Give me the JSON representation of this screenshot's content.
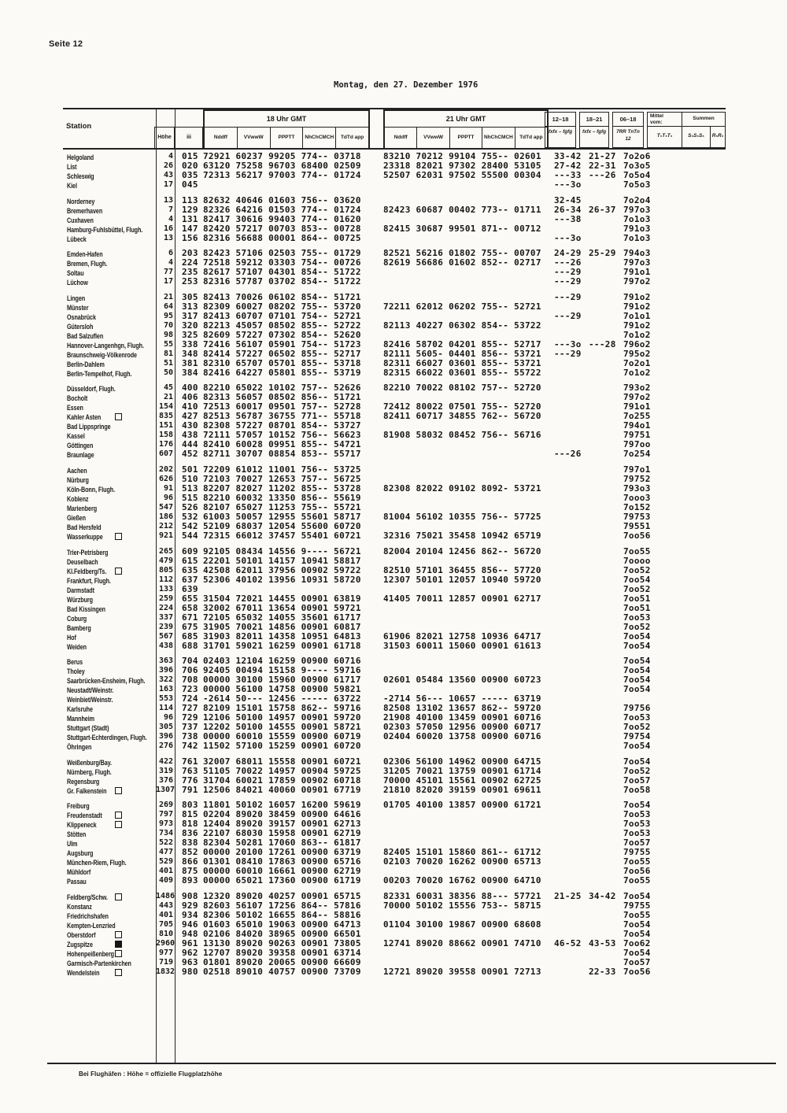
{
  "page": {
    "label": "Seite 12",
    "title": "Montag, den 27. Dezember 1976",
    "footnote": "Bei Flughäfen :  Höhe = offizielle Flugplatzhöhe"
  },
  "header": {
    "station": "Station",
    "hoehe": "Höhe",
    "iii": "iii",
    "g18_title": "18 Uhr GMT",
    "g21_title": "21 Uhr GMT",
    "cols": [
      "Nddff",
      "VVwwW",
      "PPPTT",
      "NhChCMCH",
      "TdTd app"
    ],
    "r1": "12–18",
    "r2": "18–21",
    "r3": "06–18",
    "r1s": "fxfx – fgfg",
    "r2s": "fxfx – fgfg",
    "r3s": "7RR TnTn\n12",
    "mittel": "Mittel\nvom:",
    "summen": "Summen",
    "t5": "T₅T₅T₅",
    "s5": "S₅S₅S₅",
    "r5": "R₅R₅"
  },
  "blocks": [
    [
      [
        "Helgoland",
        "",
        "4",
        "015",
        "72921 60237 99205 774-- 03718",
        "83210 70212 99104 755-- 02601",
        "33-42",
        "21-27",
        "7o2o6"
      ],
      [
        "List",
        "",
        "26",
        "020",
        "63120 75258 96703 68400 02509",
        "23318 82021 97302 28400 53105",
        "27-42",
        "22-31",
        "7o3o5"
      ],
      [
        "Schleswig",
        "",
        "43",
        "035",
        "72313 56217 97003 774-- 01724",
        "52507 62031 97502 55500 00304",
        "---33",
        "---26",
        "7o5o4"
      ],
      [
        "Kiel",
        "",
        "17",
        "045",
        "",
        "",
        "---3o",
        "",
        "7o5o3"
      ]
    ],
    [
      [
        "Norderney",
        "",
        "13",
        "113",
        "82632 40646 01603 756-- 03620",
        "",
        "32-45",
        "",
        "7o2o4"
      ],
      [
        "Bremerhaven",
        "",
        "7",
        "129",
        "82326 64216 01503 774-- 01724",
        "82423 60687 00402 773-- 01711",
        "26-34",
        "26-37",
        "797o3"
      ],
      [
        "Cuxhaven",
        "",
        "4",
        "131",
        "82417 30616 99403 774-- 01620",
        "",
        "---38",
        "",
        "7o1o3"
      ],
      [
        "Hamburg-Fuhlsbüttel, Flugh.",
        "",
        "16",
        "147",
        "82420 57217 00703 853-- 00728",
        "82415 30687 99501 871-- 00712",
        "",
        "",
        "791o3"
      ],
      [
        "Lübeck",
        "",
        "13",
        "156",
        "82316 56688 00001 864-- 00725",
        "",
        "---3o",
        "",
        "7o1o3"
      ]
    ],
    [
      [
        "Emden-Hafen",
        "",
        "6",
        "203",
        "82423 57106 02503 755-- 01729",
        "82521 56216 01802 755-- 00707",
        "24-29",
        "25-29",
        "794o3"
      ],
      [
        "Bremen, Flugh.",
        "",
        "4",
        "224",
        "72518 59212 03303 754-- 00726",
        "82619 56686 01602 852-- 02717",
        "---26",
        "",
        "797o3"
      ],
      [
        "Soltau",
        "",
        "77",
        "235",
        "82617 57107 04301 854-- 51722",
        "",
        "---29",
        "",
        "791o1"
      ],
      [
        "Lüchow",
        "",
        "17",
        "253",
        "82316 57787 03702 854-- 51722",
        "",
        "---29",
        "",
        "797o2"
      ]
    ],
    [
      [
        "Lingen",
        "",
        "21",
        "305",
        "82413 70026 06102 854-- 51721",
        "",
        "---29",
        "",
        "791o2"
      ],
      [
        "Münster",
        "",
        "64",
        "313",
        "82309 60027 08202 755-- 53720",
        "72211 62012 06202 755-- 52721",
        "",
        "",
        "791o2"
      ],
      [
        "Osnabrück",
        "",
        "95",
        "317",
        "82413 60707 07101 754-- 52721",
        "",
        "---29",
        "",
        "7o1o1"
      ],
      [
        "Gütersloh",
        "",
        "70",
        "320",
        "82213 45057 08502 855-- 52722",
        "82113 40227 06302 854-- 53722",
        "",
        "",
        "791o2"
      ],
      [
        "Bad Salzuflen",
        "",
        "98",
        "325",
        "82609 57227 07302 854-- 52620",
        "",
        "",
        "",
        "7o1o2"
      ],
      [
        "Hannover-Langenhgn, Flugh.",
        "",
        "55",
        "338",
        "72416 56107 05901 754-- 51723",
        "82416 58702 04201 855-- 52717",
        "---3o",
        "---28",
        "796o2"
      ],
      [
        "Braunschweig-Völkenrode",
        "",
        "81",
        "348",
        "82414 57227 06502 855-- 52717",
        "82111 5605- 04401 856-- 53721",
        "---29",
        "",
        "795o2"
      ],
      [
        "Berlin-Dahlem",
        "",
        "51",
        "381",
        "82310 65707 05701 855-- 53718",
        "82311 66027 03601 855-- 53721",
        "",
        "",
        "7o2o1"
      ],
      [
        "Berlin-Tempelhof, Flugh.",
        "",
        "50",
        "384",
        "82416 64227 05801 855-- 53719",
        "82315 66022 03601 855-- 55722",
        "",
        "",
        "7o1o2"
      ]
    ],
    [
      [
        "Düsseldorf, Flugh.",
        "",
        "45",
        "400",
        "82210 65022 10102 757-- 52626",
        "82210 70022 08102 757-- 52720",
        "",
        "",
        "793o2"
      ],
      [
        "Bocholt",
        "",
        "21",
        "406",
        "82313 56057 08502 856-- 51721",
        "",
        "",
        "",
        "797o2"
      ],
      [
        "Essen",
        "",
        "154",
        "410",
        "72513 60017 09501 757-- 52728",
        "72412 80022 07501 755-- 52720",
        "",
        "",
        "791o1"
      ],
      [
        "Kahler Asten",
        "o",
        "835",
        "427",
        "82513 56787 36755 771-- 55718",
        "82411 60717 34855 762-- 56720",
        "",
        "",
        "7o255"
      ],
      [
        "Bad Lippspringe",
        "",
        "151",
        "430",
        "82308 57227 08701 854-- 53727",
        "",
        "",
        "",
        "794o1"
      ],
      [
        "Kassel",
        "",
        "158",
        "438",
        "72111 57057 10152 756-- 56623",
        "81908 58032 08452 756-- 56716",
        "",
        "",
        "79751"
      ],
      [
        "Göttingen",
        "",
        "176",
        "444",
        "82410 60028 09951 855-- 54721",
        "",
        "",
        "",
        "797oo"
      ],
      [
        "Braunlage",
        "",
        "607",
        "452",
        "82711 30707 08854 853-- 55717",
        "",
        "---26",
        "",
        "7o254"
      ]
    ],
    [
      [
        "Aachen",
        "",
        "202",
        "501",
        "72209 61012 11001 756-- 53725",
        "",
        "",
        "",
        "797o1"
      ],
      [
        "Nürburg",
        "",
        "626",
        "510",
        "72103 70027 12653 757-- 56725",
        "",
        "",
        "",
        "79752"
      ],
      [
        "Köln-Bonn, Flugh.",
        "",
        "91",
        "513",
        "82207 82027 11202 855-- 53728",
        "82308 82022 09102 8092- 53721",
        "",
        "",
        "793o3"
      ],
      [
        "Koblenz",
        "",
        "96",
        "515",
        "82210 60032 13350 856-- 55619",
        "",
        "",
        "",
        "7ooo3"
      ],
      [
        "Marienberg",
        "",
        "547",
        "526",
        "82107 65027 11253 755-- 55721",
        "",
        "",
        "",
        "7o152"
      ],
      [
        "Gießen",
        "",
        "186",
        "532",
        "61003 50057 12955 55601 58717",
        "81004 56102 10355 756-- 57725",
        "",
        "",
        "79753"
      ],
      [
        "Bad Hersfeld",
        "",
        "212",
        "542",
        "52109 68037 12054 55600 60720",
        "",
        "",
        "",
        "79551"
      ],
      [
        "Wasserkuppe",
        "o",
        "921",
        "544",
        "72315 66012 37457 55401 60721",
        "32316 75021 35458 10942 65719",
        "",
        "",
        "7oo56"
      ]
    ],
    [
      [
        "Trier-Petrisberg",
        "",
        "265",
        "609",
        "92105 08434 14556 9---- 56721",
        "82004 20104 12456 862-- 56720",
        "",
        "",
        "7oo55"
      ],
      [
        "Deuselbach",
        "",
        "479",
        "615",
        "22201 50101 14157 10941 58817",
        "",
        "",
        "",
        "7oooo"
      ],
      [
        "Kl.Feldberg/Ts.",
        "o",
        "805",
        "635",
        "42508 62011 37956 00902 59722",
        "82510 57101 36455 856-- 57720",
        "",
        "",
        "7oo52"
      ],
      [
        "Frankfurt, Flugh.",
        "",
        "112",
        "637",
        "52306 40102 13956 10931 58720",
        "12307 50101 12057 10940 59720",
        "",
        "",
        "7oo54"
      ],
      [
        "Darmstadt",
        "",
        "133",
        "639",
        "",
        "",
        "",
        "",
        "7oo52"
      ],
      [
        "Würzburg",
        "",
        "259",
        "655",
        "31504 72021 14455 00901 63819",
        "41405 70011 12857 00901 62717",
        "",
        "",
        "7oo51"
      ],
      [
        "Bad Kissingen",
        "",
        "224",
        "658",
        "32002 67011 13654 00901 59721",
        "",
        "",
        "",
        "7oo51"
      ],
      [
        "Coburg",
        "",
        "337",
        "671",
        "72105 65032 14055 35601 61717",
        "",
        "",
        "",
        "7oo53"
      ],
      [
        "Bamberg",
        "",
        "239",
        "675",
        "31905 70021 14856 00901 60817",
        "",
        "",
        "",
        "7oo52"
      ],
      [
        "Hof",
        "",
        "567",
        "685",
        "31903 82011 14358 10951 64813",
        "61906 82021 12758 10936 64717",
        "",
        "",
        "7oo54"
      ],
      [
        "Weiden",
        "",
        "438",
        "688",
        "31701 59021 16259 00901 61718",
        "31503 60011 15060 00901 61613",
        "",
        "",
        "7oo54"
      ]
    ],
    [
      [
        "Berus",
        "",
        "363",
        "704",
        "02403 12104 16259 00900 60716",
        "",
        "",
        "",
        "7oo54"
      ],
      [
        "Tholey",
        "",
        "396",
        "706",
        "92405 00494 15158 9---- 59716",
        "",
        "",
        "",
        "7oo54"
      ],
      [
        "Saarbrücken-Ensheim, Flugh.",
        "",
        "322",
        "708",
        "00000 30100 15960 00900 61717",
        "02601 05484 13560 00900 60723",
        "",
        "",
        "7oo54"
      ],
      [
        "Neustadt/Weinstr.",
        "",
        "163",
        "723",
        "00000 56100 14758 00900 59821",
        "",
        "",
        "",
        "7oo54"
      ],
      [
        "Weinbiet/Weinstr.",
        "",
        "553",
        "724",
        "-2614 50--- 12456 ----- 63722",
        "-2714 56--- 10657 ----- 63719",
        "",
        "",
        ""
      ],
      [
        "Karlsruhe",
        "",
        "114",
        "727",
        "82109 15101 15758 862-- 59716",
        "82508 13102 13657 862-- 59720",
        "",
        "",
        "79756"
      ],
      [
        "Mannheim",
        "",
        "96",
        "729",
        "12106 50100 14957 00901 59720",
        "21908 40100 13459 00901 60716",
        "",
        "",
        "7oo53"
      ],
      [
        "Stuttgart (Stadt)",
        "",
        "305",
        "737",
        "12202 50100 14555 00901 58721",
        "02303 57050 12956 00900 60717",
        "",
        "",
        "7oo52"
      ],
      [
        "Stuttgart-Echterdingen, Flugh.",
        "",
        "396",
        "738",
        "00000 60010 15559 00900 60719",
        "02404 60020 13758 00900 60716",
        "",
        "",
        "79754"
      ],
      [
        "Öhringen",
        "",
        "276",
        "742",
        "11502 57100 15259 00901 60720",
        "",
        "",
        "",
        "7oo54"
      ]
    ],
    [
      [
        "Weißenburg/Bay.",
        "",
        "422",
        "761",
        "32007 68011 15558 00901 60721",
        "02306 56100 14962 00900 64715",
        "",
        "",
        "7oo54"
      ],
      [
        "Nürnberg, Flugh.",
        "",
        "319",
        "763",
        "51105 70022 14957 00904 59725",
        "31205 70021 13759 00901 61714",
        "",
        "",
        "7oo52"
      ],
      [
        "Regensburg",
        "",
        "376",
        "776",
        "31704 60021 17859 00902 60718",
        "70000 45101 15561 00902 62725",
        "",
        "",
        "7oo57"
      ],
      [
        "Gr. Falkenstein",
        "o",
        "1307",
        "791",
        "12506 84021 40060 00901 67719",
        "21810 82020 39159 00901 69611",
        "",
        "",
        "7oo58"
      ]
    ],
    [
      [
        "Freiburg",
        "",
        "269",
        "803",
        "11801 50102 16057 16200 59619",
        "01705 40100 13857 00900 61721",
        "",
        "",
        "7oo54"
      ],
      [
        "Freudenstadt",
        "o",
        "797",
        "815",
        "02204 89020 38459 00900 64616",
        "",
        "",
        "",
        "7oo53"
      ],
      [
        "Klippeneck",
        "o",
        "973",
        "818",
        "12404 89020 39157 00901 62713",
        "",
        "",
        "",
        "7oo53"
      ],
      [
        "Stötten",
        "",
        "734",
        "836",
        "22107 68030 15958 00901 62719",
        "",
        "",
        "",
        "7oo53"
      ],
      [
        "Ulm",
        "",
        "522",
        "838",
        "82304 50281 17060 863-- 61817",
        "",
        "",
        "",
        "7oo57"
      ],
      [
        "Augsburg",
        "",
        "477",
        "852",
        "00000 20100 17261 00900 63719",
        "82405 15101 15860 861-- 61712",
        "",
        "",
        "79755"
      ],
      [
        "München-Riem, Flugh.",
        "",
        "529",
        "866",
        "01301 08410 17863 00900 65716",
        "02103 70020 16262 00900 65713",
        "",
        "",
        "7oo55"
      ],
      [
        "Mühldorf",
        "",
        "401",
        "875",
        "00000 60010 16661 00900 62719",
        "",
        "",
        "",
        "7oo56"
      ],
      [
        "Passau",
        "",
        "409",
        "893",
        "00000 65021 17360 00900 61719",
        "00203 70020 16762 00900 64710",
        "",
        "",
        "7oo55"
      ]
    ],
    [
      [
        "Feldberg/Schw.",
        "o",
        "1486",
        "908",
        "12320 89020 40257 00901 65715",
        "82331 60031 38356 88--- 57721",
        "21-25",
        "34-42",
        "7oo54"
      ],
      [
        "Konstanz",
        "",
        "443",
        "929",
        "82603 56107 17256 864-- 57816",
        "70000 50102 15556 753-- 58715",
        "",
        "",
        "79755"
      ],
      [
        "Friedrichshafen",
        "",
        "401",
        "934",
        "82306 50102 16655 864-- 58816",
        "",
        "",
        "",
        "7oo55"
      ],
      [
        "Kempten-Lenzried",
        "",
        "705",
        "946",
        "01603 65010 19063 00900 64713",
        "01104 30100 19867 00900 68608",
        "",
        "",
        "7oo54"
      ],
      [
        "Oberstdorf",
        "o",
        "810",
        "948",
        "02106 84020 38965 00900 66501",
        "",
        "",
        "",
        "7oo54"
      ],
      [
        "Zugspitze",
        "f",
        "2960",
        "961",
        "13130 89020 90263 00901 73805",
        "12741 89020 88662 00901 74710",
        "46-52",
        "43-53",
        "7oo62"
      ],
      [
        "Hohenpeißenberg",
        "o",
        "977",
        "962",
        "12707 89020 39358 00901 63714",
        "",
        "",
        "",
        "7oo54"
      ],
      [
        "Garmisch-Partenkirchen",
        "",
        "719",
        "963",
        "01801 89020 20065 00900 66609",
        "",
        "",
        "",
        "7oo57"
      ],
      [
        "Wendelstein",
        "o",
        "1832",
        "980",
        "02518 89010 40757 00900 73709",
        "12721 89020 39558 00901 72713",
        "",
        "22-33",
        "7oo56"
      ]
    ]
  ]
}
